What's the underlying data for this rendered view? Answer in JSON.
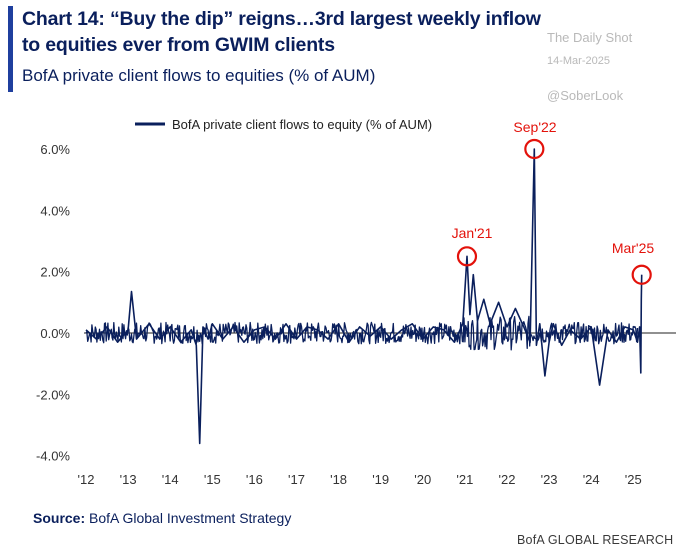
{
  "header": {
    "title": "Chart 14: “Buy the dip” reigns…3rd largest weekly inflow to equities ever from GWIM clients",
    "subtitle": "BofA private client flows to equities (% of AUM)"
  },
  "watermark": {
    "title": "The Daily Shot",
    "date": "14-Mar-2025",
    "handle": "@SoberLook"
  },
  "footer": {
    "source_label": "Source:",
    "source_text": "BofA Global Investment Strategy",
    "brand": "BofA GLOBAL RESEARCH"
  },
  "colors": {
    "series": "#0a1f5c",
    "annotation": "#e3120b",
    "axis_text": "#333333",
    "title": "#0a1f5c"
  },
  "chart_data": {
    "type": "line",
    "legend": "BofA private client flows to equity (% of AUM)",
    "legend_position": "top",
    "x_tick_labels": [
      "'12",
      "'13",
      "'14",
      "'15",
      "'16",
      "'17",
      "'18",
      "'19",
      "'20",
      "'21",
      "'22",
      "'23",
      "'24",
      "'25"
    ],
    "y_tick_labels": [
      "6.0%",
      "4.0%",
      "2.0%",
      "0.0%",
      "-2.0%",
      "-4.0%"
    ],
    "ylim": [
      -4.0,
      6.0
    ],
    "xlim": [
      2012.0,
      2025.35
    ],
    "grid": false,
    "series": [
      {
        "name": "BofA private client flows to equity (% of AUM)",
        "x": [
          2012.0,
          2012.25,
          2012.5,
          2012.75,
          2013.0,
          2013.08,
          2013.2,
          2013.5,
          2013.75,
          2014.0,
          2014.25,
          2014.5,
          2014.62,
          2014.7,
          2014.78,
          2014.9,
          2015.0,
          2015.25,
          2015.5,
          2015.75,
          2016.0,
          2016.25,
          2016.5,
          2016.75,
          2017.0,
          2017.25,
          2017.5,
          2017.75,
          2018.0,
          2018.25,
          2018.5,
          2018.75,
          2019.0,
          2019.25,
          2019.5,
          2019.75,
          2020.0,
          2020.25,
          2020.5,
          2020.75,
          2020.95,
          2021.05,
          2021.12,
          2021.2,
          2021.3,
          2021.45,
          2021.6,
          2021.8,
          2022.0,
          2022.2,
          2022.4,
          2022.55,
          2022.65,
          2022.7,
          2022.78,
          2022.9,
          2023.0,
          2023.1,
          2023.3,
          2023.5,
          2023.75,
          2024.0,
          2024.2,
          2024.4,
          2024.6,
          2024.8,
          2025.0,
          2025.1,
          2025.15,
          2025.18,
          2025.19,
          2025.2
        ],
        "y": [
          0.1,
          -0.2,
          0.2,
          -0.3,
          0.1,
          1.35,
          -0.2,
          0.3,
          -0.2,
          0.2,
          -0.3,
          0.1,
          -0.4,
          -3.6,
          0.2,
          -0.2,
          0.3,
          -0.2,
          0.2,
          -0.3,
          0.1,
          0.2,
          -0.2,
          0.3,
          -0.2,
          0.2,
          0.1,
          -0.2,
          0.3,
          -0.3,
          0.2,
          -0.1,
          0.2,
          -0.2,
          0.1,
          0.3,
          -0.2,
          0.2,
          0.1,
          -0.3,
          0.3,
          2.5,
          0.6,
          1.9,
          0.4,
          1.1,
          0.3,
          1.0,
          0.2,
          0.8,
          0.2,
          -0.3,
          6.0,
          -0.4,
          0.3,
          -1.4,
          -0.3,
          0.3,
          -0.4,
          0.1,
          -0.2,
          0.2,
          -1.7,
          0.1,
          -0.3,
          0.2,
          0.1,
          -0.3,
          0.2,
          -1.3,
          1.1,
          1.9
        ]
      }
    ],
    "annotations": [
      {
        "label": "Jan'21",
        "x": 2021.05,
        "y": 2.5
      },
      {
        "label": "Sep'22",
        "x": 2022.65,
        "y": 6.0
      },
      {
        "label": "Mar'25",
        "x": 2025.2,
        "y": 1.9
      }
    ]
  }
}
